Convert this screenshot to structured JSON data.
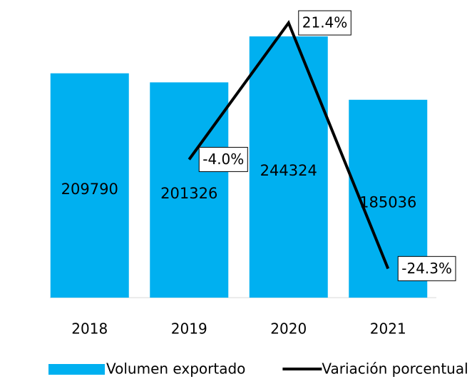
{
  "chart_data": {
    "type": "bar",
    "categories": [
      "2018",
      "2019",
      "2020",
      "2021"
    ],
    "series": [
      {
        "name": "Volumen exportado",
        "type": "bar",
        "color": "#00b0f0",
        "values": [
          209790,
          201326,
          244324,
          185036
        ]
      },
      {
        "name": "Variación porcentual",
        "type": "line",
        "axis": "y2",
        "color": "#000000",
        "values": [
          null,
          -4.0,
          21.4,
          -24.3
        ],
        "value_labels": [
          null,
          "-4.0%",
          "21.4%",
          "-24.3%"
        ]
      }
    ],
    "ylim": [
      0,
      265000
    ],
    "y2lim": [
      -29.7,
      23
    ],
    "legend": "bottom"
  }
}
